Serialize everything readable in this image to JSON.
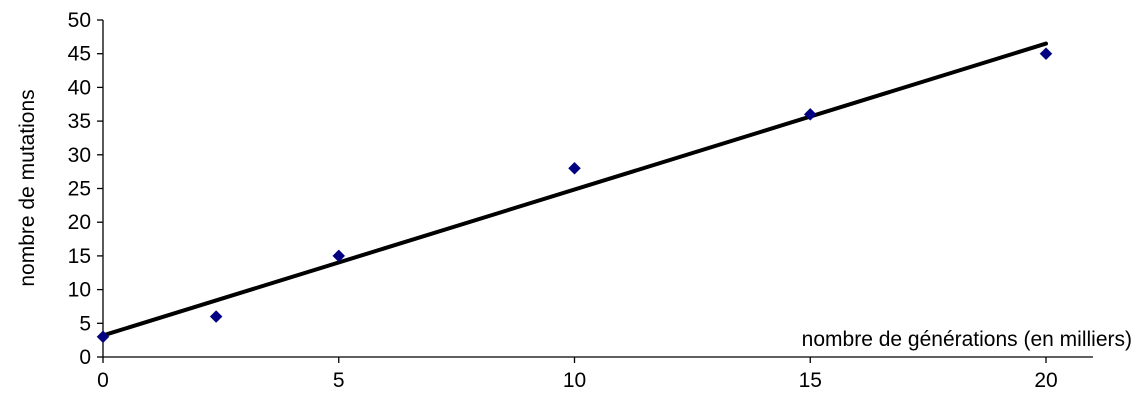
{
  "chart_data": {
    "type": "scatter",
    "title": "",
    "xlabel": "nombre  de  générations  (en milliers)",
    "ylabel": "nombre  de  mutations",
    "xlim": [
      0,
      21
    ],
    "ylim": [
      0,
      50
    ],
    "x_ticks": [
      0,
      5,
      10,
      15,
      20
    ],
    "y_ticks": [
      0,
      5,
      10,
      15,
      20,
      25,
      30,
      35,
      40,
      45,
      50
    ],
    "x_tick_labels": [
      "0",
      "5",
      "10",
      "15",
      "20"
    ],
    "y_tick_labels": [
      "0",
      "5",
      "10",
      "15",
      "20",
      "25",
      "30",
      "35",
      "40",
      "45",
      "50"
    ],
    "grid": false,
    "legend": "none",
    "series": [
      {
        "x": [
          0,
          2.4,
          5,
          10,
          15,
          20
        ],
        "y": [
          3,
          6,
          15,
          28,
          36,
          45
        ],
        "marker": "diamond",
        "color": "#000080"
      }
    ],
    "trendline": {
      "x": [
        0,
        20
      ],
      "y": [
        3.2,
        46.5
      ],
      "color": "#000000"
    }
  }
}
